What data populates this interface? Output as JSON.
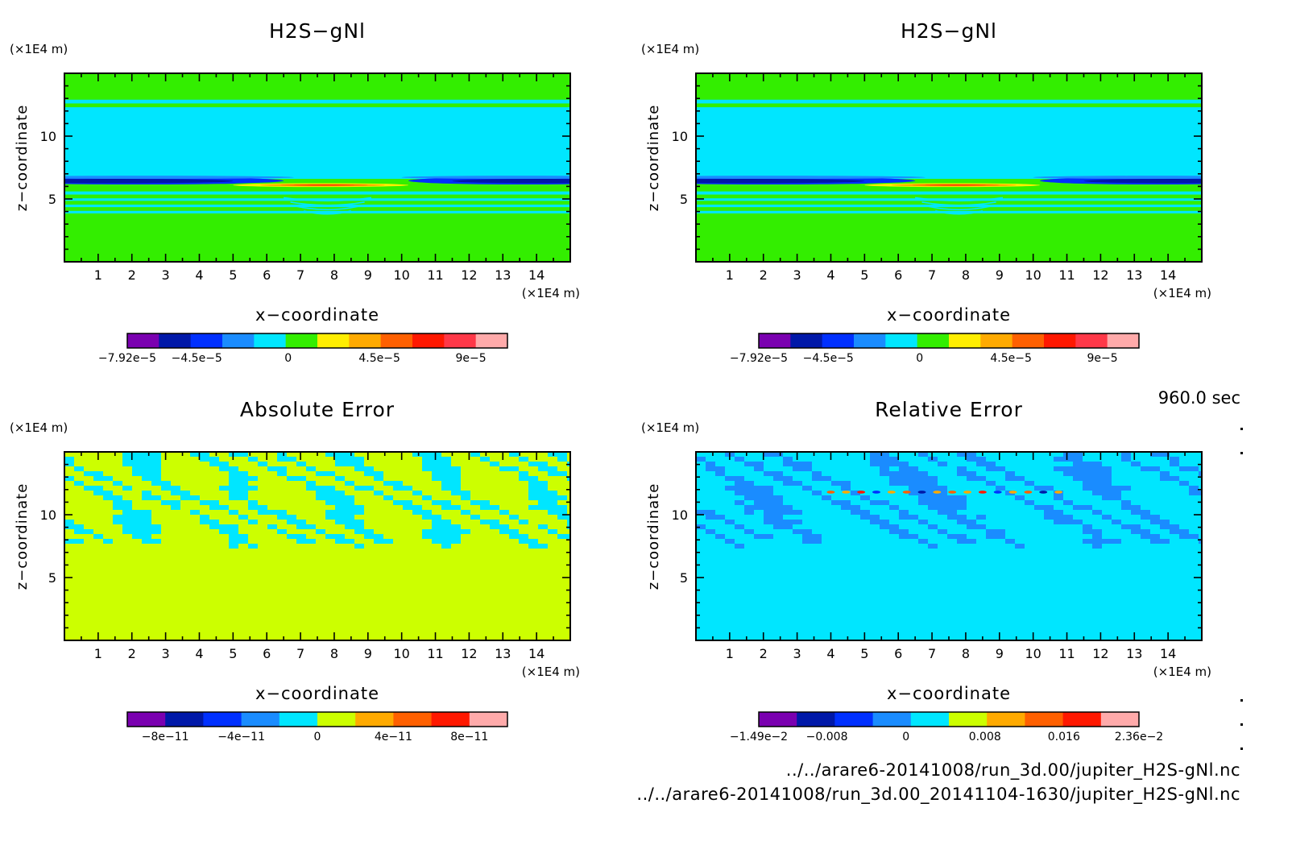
{
  "time_label": "960.0 sec",
  "file_paths": [
    "../../arare6-20141008/run_3d.00/jupiter_H2S-gNl.nc",
    "../../arare6-20141008/run_3d.00_20141104-1630/jupiter_H2S-gNl.nc"
  ],
  "chart_data": [
    {
      "type": "heatmap",
      "title": "H2S−gNl",
      "xlabel": "x−coordinate",
      "ylabel": "z−coordinate",
      "x_unit": "(×1E4 m)",
      "y_unit": "(×1E4 m)",
      "x_ticks": [
        "1",
        "2",
        "3",
        "4",
        "5",
        "6",
        "7",
        "8",
        "9",
        "10",
        "11",
        "12",
        "13",
        "14"
      ],
      "y_ticks": [
        "5",
        "10"
      ],
      "xlim": [
        0,
        15
      ],
      "ylim": [
        0,
        15
      ],
      "field": "h2s",
      "colorbar": {
        "colors": [
          "#7a00b0",
          "#0018a8",
          "#0030ff",
          "#1a8cff",
          "#00e6ff",
          "#33ee00",
          "#ffee00",
          "#ffaa00",
          "#ff6000",
          "#ff1800",
          "#ff3848",
          "#ffaaaa"
        ],
        "range": [
          -7.92e-05,
          0.000108
        ],
        "ticks": [
          {
            "label": "−7.92e−5",
            "value": -7.92e-05
          },
          {
            "label": "−4.5e−5",
            "value": -4.5e-05
          },
          {
            "label": "0",
            "value": 0
          },
          {
            "label": "4.5e−5",
            "value": 4.5e-05
          },
          {
            "label": "9e−5",
            "value": 9e-05
          }
        ]
      }
    },
    {
      "type": "heatmap",
      "title": "H2S−gNl",
      "xlabel": "x−coordinate",
      "ylabel": "z−coordinate",
      "x_unit": "(×1E4 m)",
      "y_unit": "(×1E4 m)",
      "x_ticks": [
        "1",
        "2",
        "3",
        "4",
        "5",
        "6",
        "7",
        "8",
        "9",
        "10",
        "11",
        "12",
        "13",
        "14"
      ],
      "y_ticks": [
        "5",
        "10"
      ],
      "xlim": [
        0,
        15
      ],
      "ylim": [
        0,
        15
      ],
      "field": "h2s",
      "colorbar": {
        "colors": [
          "#7a00b0",
          "#0018a8",
          "#0030ff",
          "#1a8cff",
          "#00e6ff",
          "#33ee00",
          "#ffee00",
          "#ffaa00",
          "#ff6000",
          "#ff1800",
          "#ff3848",
          "#ffaaaa"
        ],
        "range": [
          -7.92e-05,
          0.000108
        ],
        "ticks": [
          {
            "label": "−7.92e−5",
            "value": -7.92e-05
          },
          {
            "label": "−4.5e−5",
            "value": -4.5e-05
          },
          {
            "label": "0",
            "value": 0
          },
          {
            "label": "4.5e−5",
            "value": 4.5e-05
          },
          {
            "label": "9e−5",
            "value": 9e-05
          }
        ]
      }
    },
    {
      "type": "heatmap",
      "title": "Absolute Error",
      "xlabel": "x−coordinate",
      "ylabel": "z−coordinate",
      "x_unit": "(×1E4 m)",
      "y_unit": "(×1E4 m)",
      "x_ticks": [
        "1",
        "2",
        "3",
        "4",
        "5",
        "6",
        "7",
        "8",
        "9",
        "10",
        "11",
        "12",
        "13",
        "14"
      ],
      "y_ticks": [
        "5",
        "10"
      ],
      "xlim": [
        0,
        15
      ],
      "ylim": [
        0,
        15
      ],
      "field": "abs",
      "colorbar": {
        "colors": [
          "#7a00b0",
          "#0018a8",
          "#0030ff",
          "#1a8cff",
          "#00e6ff",
          "#ccff00",
          "#ffaa00",
          "#ff6000",
          "#ff1800",
          "#ffaaaa"
        ],
        "range": [
          -1e-10,
          1e-10
        ],
        "ticks": [
          {
            "label": "−8e−11",
            "value": -8e-11
          },
          {
            "label": "−4e−11",
            "value": -4e-11
          },
          {
            "label": "0",
            "value": 0
          },
          {
            "label": "4e−11",
            "value": 4e-11
          },
          {
            "label": "8e−11",
            "value": 8e-11
          }
        ]
      }
    },
    {
      "type": "heatmap",
      "title": "Relative Error",
      "xlabel": "x−coordinate",
      "ylabel": "z−coordinate",
      "x_unit": "(×1E4 m)",
      "y_unit": "(×1E4 m)",
      "x_ticks": [
        "1",
        "2",
        "3",
        "4",
        "5",
        "6",
        "7",
        "8",
        "9",
        "10",
        "11",
        "12",
        "13",
        "14"
      ],
      "y_ticks": [
        "5",
        "10"
      ],
      "xlim": [
        0,
        15
      ],
      "ylim": [
        0,
        15
      ],
      "field": "rel",
      "colorbar": {
        "colors": [
          "#7a00b0",
          "#0018a8",
          "#0030ff",
          "#1a8cff",
          "#00e6ff",
          "#ccff00",
          "#ffaa00",
          "#ff6000",
          "#ff1800",
          "#ffaaaa"
        ],
        "range": [
          -0.0149,
          0.0236
        ],
        "ticks": [
          {
            "label": "−1.49e−2",
            "value": -0.0149
          },
          {
            "label": "−0.008",
            "value": -0.008
          },
          {
            "label": "0",
            "value": 0
          },
          {
            "label": "0.008",
            "value": 0.008
          },
          {
            "label": "0.016",
            "value": 0.016
          },
          {
            "label": "2.36e−2",
            "value": 0.0236
          }
        ]
      }
    }
  ]
}
